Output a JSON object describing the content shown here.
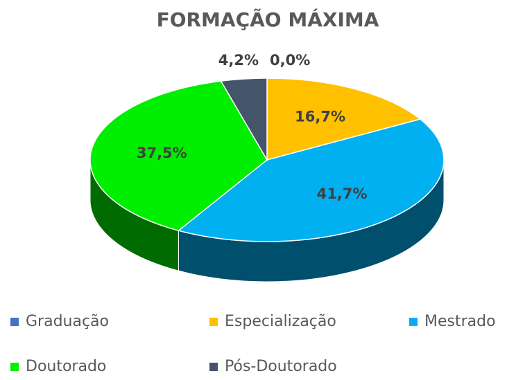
{
  "chart_data": {
    "type": "pie",
    "title": "FORMAÇÃO MÁXIMA",
    "categories": [
      "Graduação",
      "Especialização",
      "Mestrado",
      "Doutorado",
      "Pós-Doutorado"
    ],
    "values": [
      0.0,
      16.7,
      41.7,
      37.5,
      4.2
    ],
    "value_labels": [
      "0,0%",
      "16,7%",
      "41,7%",
      "37,5%",
      "4,2%"
    ],
    "colors": [
      "#4472c4",
      "#ffc000",
      "#00b0f0",
      "#00ee00",
      "#44546a"
    ],
    "legend": "bottom"
  }
}
